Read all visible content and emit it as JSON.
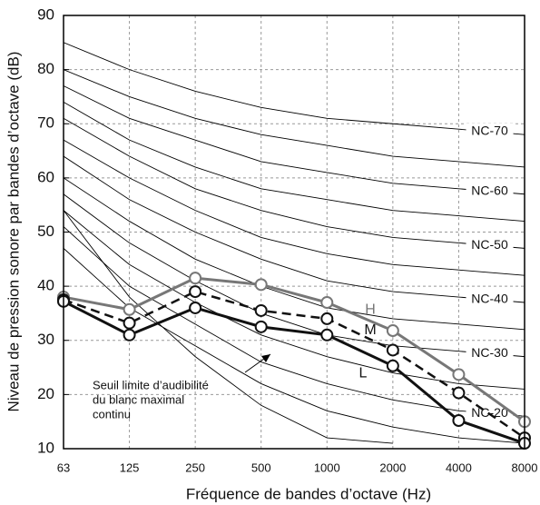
{
  "chart_data": {
    "type": "line",
    "x_label": "Fréquence de bandes d’octave (Hz)",
    "y_label": "Niveau de pression sonore par bandes d’octave (dB)",
    "categories": [
      "63",
      "125",
      "250",
      "500",
      "1000",
      "2000",
      "4000",
      "8000"
    ],
    "ylim": [
      10,
      90
    ],
    "yticks": [
      10,
      20,
      30,
      40,
      50,
      60,
      70,
      80,
      90
    ],
    "grid": true,
    "series": [
      {
        "name": "H",
        "color": "#777777",
        "style": "solid",
        "values": [
          38,
          35.7,
          41.5,
          40.3,
          37,
          31.8,
          23.7,
          15
        ]
      },
      {
        "name": "M",
        "color": "#111111",
        "style": "dashed",
        "values": [
          37.5,
          33.2,
          39,
          35.5,
          34,
          28.2,
          20.3,
          12
        ]
      },
      {
        "name": "L",
        "color": "#111111",
        "style": "solid",
        "values": [
          37.2,
          31,
          36,
          32.5,
          31,
          25.3,
          15.2,
          11
        ]
      }
    ],
    "nc_curves": [
      {
        "values": [
          47,
          36,
          29,
          22,
          17,
          14,
          12,
          11
        ]
      },
      {
        "label": "NC-20",
        "values": [
          51,
          40,
          33,
          26,
          22,
          19,
          17,
          16
        ]
      },
      {
        "values": [
          54,
          44,
          37,
          31,
          27,
          24,
          22,
          21
        ]
      },
      {
        "label": "NC-30",
        "values": [
          57,
          48,
          41,
          35,
          31,
          29,
          28,
          27
        ]
      },
      {
        "values": [
          60,
          52,
          45,
          40,
          36,
          34,
          33,
          32
        ]
      },
      {
        "label": "NC-40",
        "values": [
          64,
          56,
          50,
          45,
          41,
          39,
          38,
          37
        ]
      },
      {
        "values": [
          67,
          60,
          54,
          49,
          46,
          44,
          43,
          42
        ]
      },
      {
        "label": "NC-50",
        "values": [
          71,
          64,
          58,
          54,
          51,
          49,
          48,
          47
        ]
      },
      {
        "values": [
          74,
          67,
          62,
          58,
          56,
          54,
          53,
          52
        ]
      },
      {
        "label": "NC-60",
        "values": [
          77,
          71,
          67,
          63,
          61,
          59,
          58,
          57
        ]
      },
      {
        "values": [
          80,
          75,
          71,
          68,
          66,
          64,
          63,
          62
        ]
      },
      {
        "label": "NC-70",
        "values": [
          85,
          80,
          76,
          73,
          71,
          70,
          69,
          68
        ]
      }
    ],
    "threshold": {
      "label": [
        "Seuil limite d’audibilité",
        "du blanc maximal",
        "continu"
      ],
      "values": [
        54,
        38,
        27,
        18,
        12,
        11,
        null,
        null
      ]
    }
  }
}
